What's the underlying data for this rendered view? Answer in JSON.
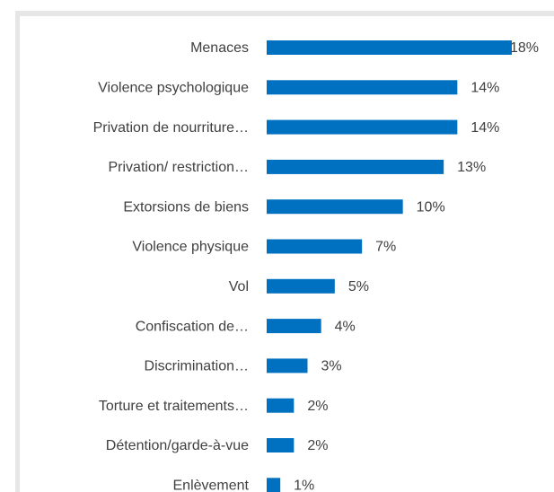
{
  "chart_data": {
    "type": "bar",
    "orientation": "horizontal",
    "categories": [
      "Menaces",
      "Violence psychologique",
      "Privation de nourriture…",
      "Privation/ restriction…",
      "Extorsions de biens",
      "Violence physique",
      "Vol",
      "Confiscation de…",
      "Discrimination…",
      "Torture et traitements…",
      "Détention/garde-à-vue",
      "Enlèvement"
    ],
    "values": [
      18,
      14,
      14,
      13,
      10,
      7,
      5,
      4,
      3,
      2,
      2,
      1
    ],
    "value_labels": [
      "18%",
      "14%",
      "14%",
      "13%",
      "10%",
      "7%",
      "5%",
      "4%",
      "3%",
      "2%",
      "2%",
      "1%"
    ],
    "color": "#0070c0"
  }
}
